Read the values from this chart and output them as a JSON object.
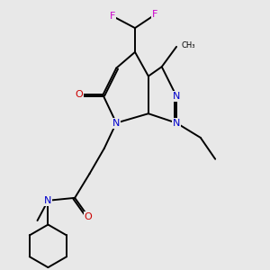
{
  "bg_color": "#e8e8e8",
  "atom_colors": {
    "N": "#0000cc",
    "O": "#cc0000",
    "F": "#cc00cc",
    "C": "#000000"
  },
  "bond_color": "#000000",
  "bond_width": 1.4,
  "dbo": 0.07
}
